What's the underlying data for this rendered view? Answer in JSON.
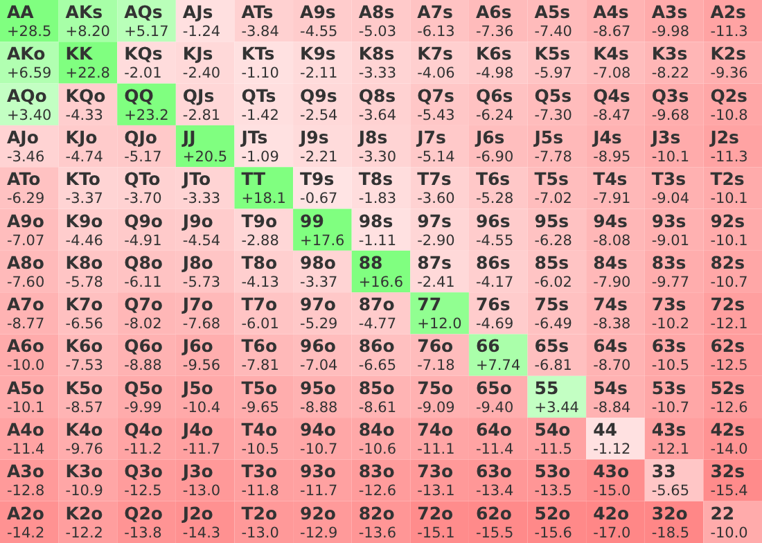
{
  "chart_data": {
    "type": "heatmap",
    "categories": [
      null,
      null,
      null,
      null,
      null,
      null,
      null,
      null,
      null,
      null,
      null,
      null,
      null
    ],
    "y_categories": [
      null,
      null,
      null,
      null,
      null,
      null,
      null,
      null,
      null,
      null,
      null,
      null,
      null
    ],
    "cells": [
      [
        28.5,
        8.2,
        5.17,
        -1.24,
        -3.84,
        -4.55,
        -5.03,
        -6.13,
        -7.36,
        -7.4,
        -8.67,
        -9.98,
        -11.3
      ],
      [
        6.59,
        22.8,
        -2.01,
        -2.4,
        -1.1,
        -2.11,
        -3.33,
        -4.06,
        -4.98,
        -5.97,
        -7.08,
        -8.22,
        -9.36
      ],
      [
        3.4,
        -4.33,
        23.2,
        -2.81,
        -1.42,
        -2.54,
        -3.64,
        -5.43,
        -6.24,
        -7.3,
        -8.47,
        -9.68,
        -10.8
      ],
      [
        -3.46,
        -4.74,
        -5.17,
        20.5,
        -1.09,
        -2.21,
        -3.3,
        -5.14,
        -6.9,
        -7.78,
        -8.95,
        -10.1,
        -11.3
      ],
      [
        -6.29,
        -3.37,
        -3.7,
        -3.33,
        18.1,
        -0.67,
        -1.83,
        -3.6,
        -5.28,
        -7.02,
        -7.91,
        -9.04,
        -10.1
      ],
      [
        -7.07,
        -4.46,
        -4.91,
        -4.54,
        -2.88,
        17.6,
        -1.11,
        -2.9,
        -4.55,
        -6.28,
        -8.08,
        -9.01,
        -10.1
      ],
      [
        -7.6,
        -5.78,
        -6.11,
        -5.73,
        -4.13,
        -3.37,
        16.6,
        -2.41,
        -4.17,
        -6.02,
        -7.9,
        -9.77,
        -10.7
      ],
      [
        -8.77,
        -6.56,
        -8.02,
        -7.68,
        -6.01,
        -5.29,
        -4.77,
        12.0,
        -4.69,
        -6.49,
        -8.38,
        -10.2,
        -12.1
      ],
      [
        -10.0,
        -7.53,
        -8.88,
        -9.56,
        -7.81,
        -7.04,
        -6.65,
        -7.18,
        7.74,
        -6.81,
        -8.7,
        -10.5,
        -12.5
      ],
      [
        -10.1,
        -8.57,
        -9.99,
        -10.4,
        -9.65,
        -8.88,
        -8.61,
        -9.09,
        -9.4,
        3.44,
        -8.84,
        -10.7,
        -12.6
      ],
      [
        -11.4,
        -9.76,
        -11.2,
        -11.7,
        -10.5,
        -10.7,
        -10.6,
        -11.1,
        -11.4,
        -11.5,
        -1.12,
        -12.1,
        -14.0
      ],
      [
        -12.8,
        -10.9,
        -12.5,
        -13.0,
        -11.8,
        -11.7,
        -12.6,
        -13.1,
        -13.4,
        -13.5,
        -15.0,
        -5.65,
        -15.4
      ],
      [
        -14.2,
        -12.2,
        -13.8,
        -14.3,
        -13.0,
        -12.9,
        -13.6,
        -15.1,
        -15.5,
        -15.6,
        -17.0,
        -18.5,
        -10.0
      ]
    ],
    "cell_labels": [
      [
        "+28.5",
        "+8.20",
        "+5.17",
        "-1.24",
        "-3.84",
        "-4.55",
        "-5.03",
        "-6.13",
        "-7.36",
        "-7.40",
        "-8.67",
        "-9.98",
        "-11.3"
      ],
      [
        "+6.59",
        "+22.8",
        "-2.01",
        "-2.40",
        "-1.10",
        "-2.11",
        "-3.33",
        "-4.06",
        "-4.98",
        "-5.97",
        "-7.08",
        "-8.22",
        "-9.36"
      ],
      [
        "+3.40",
        "-4.33",
        "+23.2",
        "-2.81",
        "-1.42",
        "-2.54",
        "-3.64",
        "-5.43",
        "-6.24",
        "-7.30",
        "-8.47",
        "-9.68",
        "-10.8"
      ],
      [
        "-3.46",
        "-4.74",
        "-5.17",
        "+20.5",
        "-1.09",
        "-2.21",
        "-3.30",
        "-5.14",
        "-6.90",
        "-7.78",
        "-8.95",
        "-10.1",
        "-11.3"
      ],
      [
        "-6.29",
        "-3.37",
        "-3.70",
        "-3.33",
        "+18.1",
        "-0.67",
        "-1.83",
        "-3.60",
        "-5.28",
        "-7.02",
        "-7.91",
        "-9.04",
        "-10.1"
      ],
      [
        "-7.07",
        "-4.46",
        "-4.91",
        "-4.54",
        "-2.88",
        "+17.6",
        "-1.11",
        "-2.90",
        "-4.55",
        "-6.28",
        "-8.08",
        "-9.01",
        "-10.1"
      ],
      [
        "-7.60",
        "-5.78",
        "-6.11",
        "-5.73",
        "-4.13",
        "-3.37",
        "+16.6",
        "-2.41",
        "-4.17",
        "-6.02",
        "-7.90",
        "-9.77",
        "-10.7"
      ],
      [
        "-8.77",
        "-6.56",
        "-8.02",
        "-7.68",
        "-6.01",
        "-5.29",
        "-4.77",
        "+12.0",
        "-4.69",
        "-6.49",
        "-8.38",
        "-10.2",
        "-12.1"
      ],
      [
        "-10.0",
        "-7.53",
        "-8.88",
        "-9.56",
        "-7.81",
        "-7.04",
        "-6.65",
        "-7.18",
        "+7.74",
        "-6.81",
        "-8.70",
        "-10.5",
        "-12.5"
      ],
      [
        "-10.1",
        "-8.57",
        "-9.99",
        "-10.4",
        "-9.65",
        "-8.88",
        "-8.61",
        "-9.09",
        "-9.40",
        "+3.44",
        "-8.84",
        "-10.7",
        "-12.6"
      ],
      [
        "-11.4",
        "-9.76",
        "-11.2",
        "-11.7",
        "-10.5",
        "-10.7",
        "-10.6",
        "-11.1",
        "-11.4",
        "-11.5",
        "-1.12",
        "-12.1",
        "-14.0"
      ],
      [
        "-12.8",
        "-10.9",
        "-12.5",
        "-13.0",
        "-11.8",
        "-11.7",
        "-12.6",
        "-13.1",
        "-13.4",
        "-13.5",
        "-15.0",
        "-5.65",
        "-15.4"
      ],
      [
        "-14.2",
        "-12.2",
        "-13.8",
        "-14.3",
        "-13.0",
        "-12.9",
        "-13.6",
        "-15.1",
        "-15.5",
        "-15.6",
        "-17.0",
        "-18.5",
        "-10.0"
      ]
    ],
    "annotations": [
      "AA",
      "AKs",
      "AQs",
      "AJs",
      "ATs",
      "A9s",
      "A8s",
      "A7s",
      "A6s",
      "A5s",
      "A4s",
      "A3s",
      "A2s",
      "AKo",
      "KK",
      "KQs",
      "KJs",
      "KTs",
      "K9s",
      "K8s",
      "K7s",
      "K6s",
      "K5s",
      "K4s",
      "K3s",
      "K2s",
      "AQo",
      "KQo",
      "QQ",
      "QJs",
      "QTs",
      "Q9s",
      "Q8s",
      "Q7s",
      "Q6s",
      "Q5s",
      "Q4s",
      "Q3s",
      "Q2s",
      "AJo",
      "KJo",
      "QJo",
      "JJ",
      "JTs",
      "J9s",
      "J8s",
      "J7s",
      "J6s",
      "J5s",
      "J4s",
      "J3s",
      "J2s",
      "ATo",
      "KTo",
      "QTo",
      "JTo",
      "TT",
      "T9s",
      "T8s",
      "T7s",
      "T6s",
      "T5s",
      "T4s",
      "T3s",
      "T2s",
      "A9o",
      "K9o",
      "Q9o",
      "J9o",
      "T9o",
      "99",
      "98s",
      "97s",
      "96s",
      "95s",
      "94s",
      "93s",
      "92s",
      "A8o",
      "K8o",
      "Q8o",
      "J8o",
      "T8o",
      "98o",
      "88",
      "87s",
      "86s",
      "85s",
      "84s",
      "83s",
      "82s",
      "A7o",
      "K7o",
      "Q7o",
      "J7o",
      "T7o",
      "97o",
      "87o",
      "77",
      "76s",
      "75s",
      "74s",
      "73s",
      "72s",
      "A6o",
      "K6o",
      "Q6o",
      "J6o",
      "T6o",
      "96o",
      "86o",
      "76o",
      "66",
      "65s",
      "64s",
      "63s",
      "62s",
      "A5o",
      "K5o",
      "Q5o",
      "J5o",
      "T5o",
      "95o",
      "85o",
      "75o",
      "65o",
      "55",
      "54s",
      "53s",
      "52s",
      "A4o",
      "K4o",
      "Q4o",
      "J4o",
      "T4o",
      "94o",
      "84o",
      "74o",
      "64o",
      "54o",
      "44",
      "43s",
      "42s",
      "A3o",
      "K3o",
      "Q3o",
      "J3o",
      "T3o",
      "93o",
      "83o",
      "73o",
      "63o",
      "53o",
      "43o",
      "33",
      "32s",
      "A2o",
      "K2o",
      "Q2o",
      "J2o",
      "T2o",
      "92o",
      "82o",
      "72o",
      "62o",
      "52o",
      "42o",
      "32o",
      "22"
    ]
  }
}
